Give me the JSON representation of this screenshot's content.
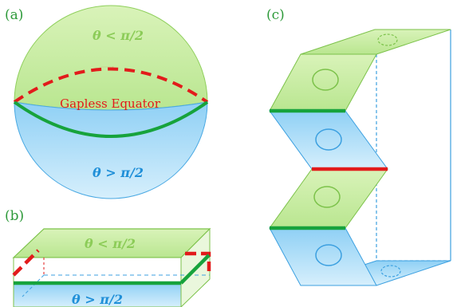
{
  "panels": {
    "a": {
      "label": "(a)"
    },
    "b": {
      "label": "(b)"
    },
    "c": {
      "label": "(c)"
    }
  },
  "sphere": {
    "top_label": "θ < π/2",
    "bottom_label": "θ > π/2",
    "equator_label": "Gapless Equator"
  },
  "slab": {
    "top_label": "θ < π/2",
    "bottom_label": "θ > π/2"
  },
  "colors": {
    "green_face": "#c6eba0",
    "green_edge": "#7cc24a",
    "blue_face": "#a9dcf7",
    "blue_edge": "#3ca0e0",
    "red_edge": "#e21b1b",
    "green_path": "#17a33c",
    "label_green": "#2e9a3a"
  }
}
